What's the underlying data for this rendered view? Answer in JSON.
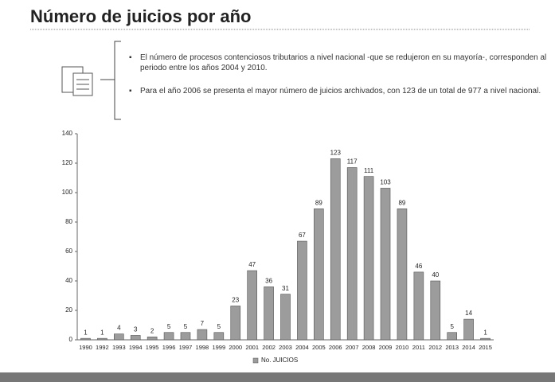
{
  "chart_data": {
    "type": "bar",
    "title": "Número de juicios por año",
    "annotations": [
      "El número de procesos contenciosos tributarios a nivel nacional -que se redujeron en su mayoría-, corresponden al periodo entre los años 2004 y 2010.",
      "Para el año 2006 se presenta el mayor número de juicios archivados, con 123 de un total de 977 a nivel nacional."
    ],
    "categories": [
      "1990",
      "1992",
      "1993",
      "1994",
      "1995",
      "1996",
      "1997",
      "1998",
      "1999",
      "2000",
      "2001",
      "2002",
      "2003",
      "2004",
      "2005",
      "2006",
      "2007",
      "2008",
      "2009",
      "2010",
      "2011",
      "2012",
      "2013",
      "2014",
      "2015"
    ],
    "series": [
      {
        "name": "No. JUICIOS",
        "color": "#9c9c9c",
        "values": [
          1,
          1,
          4,
          3,
          2,
          5,
          5,
          7,
          5,
          23,
          47,
          36,
          31,
          67,
          89,
          123,
          117,
          111,
          103,
          89,
          46,
          40,
          5,
          14,
          1
        ]
      }
    ],
    "ylim": [
      0,
      140
    ],
    "yticks": [
      0,
      20,
      40,
      60,
      80,
      100,
      120,
      140
    ],
    "legend": "bottom"
  }
}
